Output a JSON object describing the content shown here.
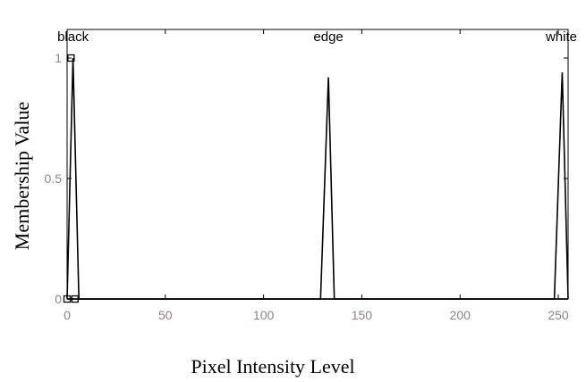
{
  "chart_data": {
    "type": "line",
    "xlabel": "Pixel Intensity Level",
    "ylabel": "Membership Value",
    "xlim": [
      0,
      255
    ],
    "ylim": [
      0,
      1
    ],
    "xticks": [
      0,
      50,
      100,
      150,
      200,
      250
    ],
    "yticks": [
      0,
      0.5,
      1
    ],
    "grid": false,
    "series": [
      {
        "name": "black",
        "x": [
          0,
          3,
          6,
          255
        ],
        "y": [
          0,
          1,
          0,
          0
        ]
      },
      {
        "name": "edge",
        "x": [
          0,
          129,
          133,
          136,
          255
        ],
        "y": [
          0,
          0,
          0.92,
          0,
          0
        ]
      },
      {
        "name": "white",
        "x": [
          0,
          248,
          252,
          255
        ],
        "y": [
          0,
          0,
          0.94,
          0
        ]
      }
    ],
    "markers": [
      {
        "x": 2,
        "y": 1
      },
      {
        "x": 0,
        "y": 0
      },
      {
        "x": 4,
        "y": 0
      }
    ]
  },
  "colors": {
    "line": "#000000",
    "tick_text": "#9a7f7f"
  }
}
